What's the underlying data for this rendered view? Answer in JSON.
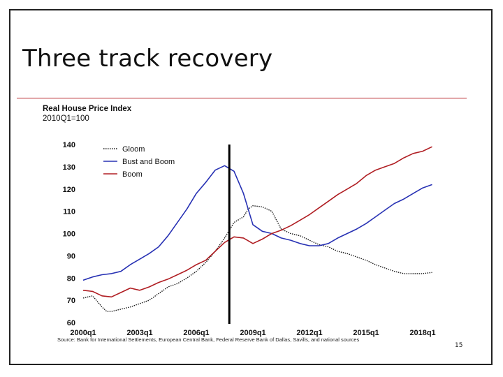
{
  "slide": {
    "title": "Three track recovery",
    "page_number": "15",
    "source": "Source: Bank for International Settlements, European Central Bank, Federal Reserve Bank of Dallas, Savills, and national sources"
  },
  "chart_data": {
    "type": "line",
    "title": "Real House Price Index",
    "subtitle": "2010Q1=100",
    "xlabel": "",
    "ylabel": "",
    "ylim": [
      60,
      140
    ],
    "xlim": [
      2000,
      2019
    ],
    "y_ticks": [
      60,
      70,
      80,
      90,
      100,
      110,
      120,
      130,
      140
    ],
    "x_ticks": [
      {
        "value": 2000,
        "label": "2000q1"
      },
      {
        "value": 2003,
        "label": "2003q1"
      },
      {
        "value": 2006,
        "label": "2006q1"
      },
      {
        "value": 2009,
        "label": "2009q1"
      },
      {
        "value": 2012,
        "label": "2012q1"
      },
      {
        "value": 2015,
        "label": "2015q1"
      },
      {
        "value": 2018,
        "label": "2018q1"
      }
    ],
    "vertical_marker": 2007.75,
    "legend_position": "top-left",
    "series": [
      {
        "name": "Gloom",
        "color": "#1a1a1a",
        "style": "dotted",
        "x": [
          2000,
          2000.5,
          2001,
          2001.25,
          2001.5,
          2002,
          2002.5,
          2003,
          2003.5,
          2004,
          2004.5,
          2005,
          2005.5,
          2006,
          2006.5,
          2007,
          2007.5,
          2008,
          2008.5,
          2008.75,
          2009,
          2009.5,
          2010,
          2010.5,
          2011,
          2011.5,
          2012,
          2012.5,
          2013,
          2013.5,
          2014,
          2014.5,
          2015,
          2015.5,
          2016,
          2016.5,
          2017,
          2017.5,
          2018,
          2018.5
        ],
        "values": [
          71,
          72,
          67,
          65,
          65,
          66,
          67,
          68.5,
          70,
          73,
          76,
          77.5,
          80,
          83,
          87,
          92,
          98,
          105,
          107.5,
          111,
          112.5,
          112,
          110,
          102,
          100,
          99,
          97,
          95,
          94,
          92,
          91,
          89.5,
          88,
          86,
          84.5,
          83,
          82,
          82,
          82,
          82.5
        ]
      },
      {
        "name": "Bust and Boom",
        "color": "#2832b4",
        "style": "solid",
        "x": [
          2000,
          2000.5,
          2001,
          2001.5,
          2002,
          2002.5,
          2003,
          2003.5,
          2004,
          2004.5,
          2005,
          2005.5,
          2006,
          2006.5,
          2007,
          2007.5,
          2008,
          2008.5,
          2009,
          2009.5,
          2010,
          2010.5,
          2011,
          2011.5,
          2012,
          2012.5,
          2013,
          2013.5,
          2014,
          2014.5,
          2015,
          2015.5,
          2016,
          2016.5,
          2017,
          2017.5,
          2018,
          2018.5
        ],
        "values": [
          79,
          80.5,
          81.5,
          82,
          83,
          86,
          88.5,
          91,
          94,
          99,
          105,
          111,
          118,
          123,
          128.5,
          130.5,
          128,
          118,
          104,
          101,
          100,
          98,
          97,
          95.5,
          94.5,
          94.5,
          95.5,
          98,
          100,
          102,
          104.5,
          107.5,
          110.5,
          113.5,
          115.5,
          118,
          120.5,
          122
        ]
      },
      {
        "name": "Boom",
        "color": "#b01e23",
        "style": "solid",
        "x": [
          2000,
          2000.5,
          2001,
          2001.5,
          2002,
          2002.5,
          2003,
          2003.5,
          2004,
          2004.5,
          2005,
          2005.5,
          2006,
          2006.5,
          2007,
          2007.5,
          2008,
          2008.5,
          2009,
          2009.5,
          2010,
          2010.5,
          2011,
          2011.5,
          2012,
          2012.5,
          2013,
          2013.5,
          2014,
          2014.5,
          2015,
          2015.5,
          2016,
          2016.5,
          2017,
          2017.5,
          2018,
          2018.5
        ],
        "values": [
          74.5,
          74,
          72,
          71.5,
          73.5,
          75.5,
          74.5,
          76,
          78,
          79.5,
          81.5,
          83.5,
          86,
          88,
          92,
          96,
          98.5,
          98,
          95.5,
          97.5,
          100,
          101.5,
          103.5,
          106,
          108.5,
          111.5,
          114.5,
          117.5,
          120,
          122.5,
          126,
          128.5,
          130,
          131.5,
          134,
          136,
          137,
          139
        ]
      }
    ]
  }
}
